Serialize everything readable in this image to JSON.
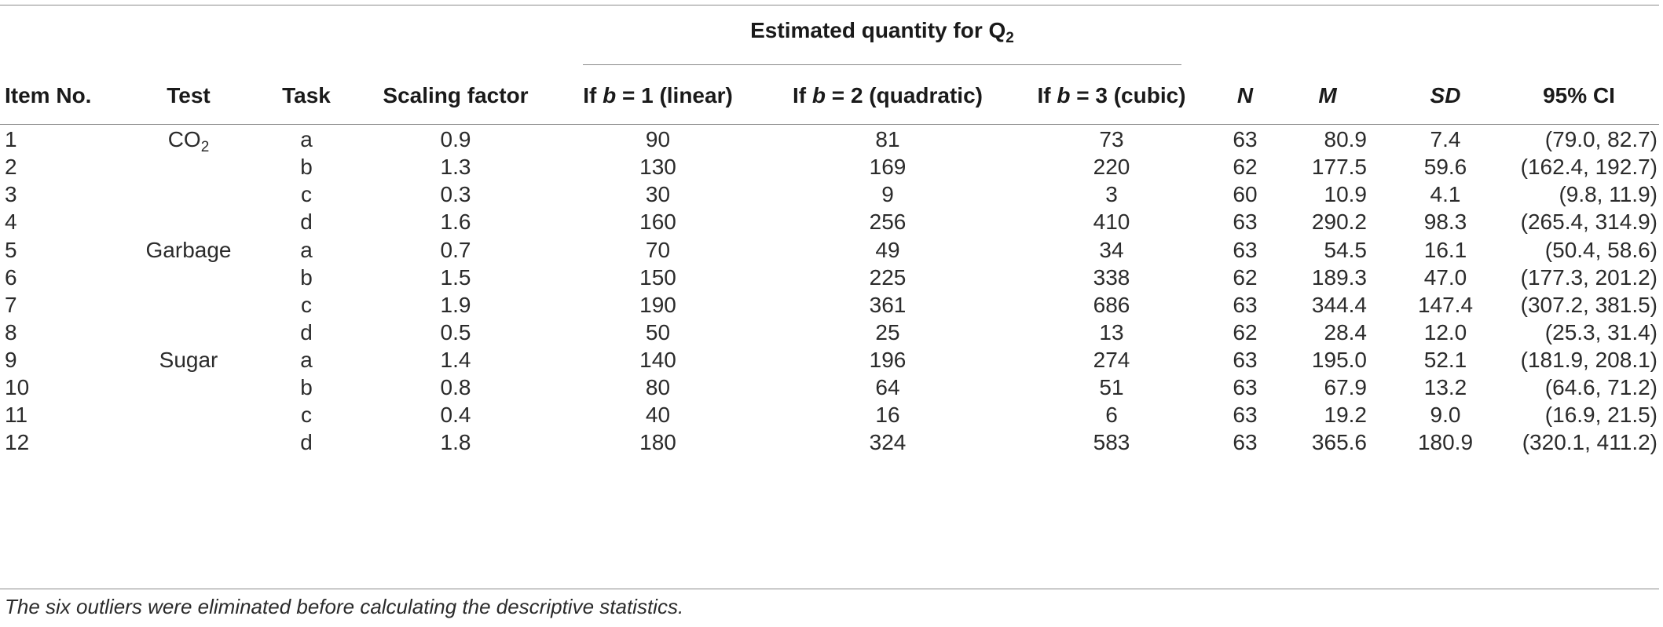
{
  "table": {
    "span_header": {
      "text": "Estimated quantity for Q",
      "sub": "2"
    },
    "headers": {
      "item": "Item No.",
      "test": "Test",
      "task": "Task",
      "scale": "Scaling factor",
      "lin_pre": "If ",
      "lin_b": "b",
      "lin_post": " = 1 (linear)",
      "quad_pre": "If ",
      "quad_b": "b",
      "quad_post": " = 2 (quadratic)",
      "cub_pre": "If ",
      "cub_b": "b",
      "cub_post": " = 3 (cubic)",
      "n": "N",
      "m": "M",
      "sd": "SD",
      "ci": "95% CI"
    },
    "rows": [
      {
        "item": "1",
        "test": "CO",
        "test_sub": "2",
        "task": "a",
        "scale": "0.9",
        "lin": "90",
        "quad": "81",
        "cub": "73",
        "n": "63",
        "m": "80.9",
        "sd": "7.4",
        "ci": "(79.0, 82.7)"
      },
      {
        "item": "2",
        "test": "",
        "test_sub": "",
        "task": "b",
        "scale": "1.3",
        "lin": "130",
        "quad": "169",
        "cub": "220",
        "n": "62",
        "m": "177.5",
        "sd": "59.6",
        "ci": "(162.4, 192.7)"
      },
      {
        "item": "3",
        "test": "",
        "test_sub": "",
        "task": "c",
        "scale": "0.3",
        "lin": "30",
        "quad": "9",
        "cub": "3",
        "n": "60",
        "m": "10.9",
        "sd": "4.1",
        "ci": "(9.8, 11.9)"
      },
      {
        "item": "4",
        "test": "",
        "test_sub": "",
        "task": "d",
        "scale": "1.6",
        "lin": "160",
        "quad": "256",
        "cub": "410",
        "n": "63",
        "m": "290.2",
        "sd": "98.3",
        "ci": "(265.4, 314.9)"
      },
      {
        "item": "5",
        "test": "Garbage",
        "test_sub": "",
        "task": "a",
        "scale": "0.7",
        "lin": "70",
        "quad": "49",
        "cub": "34",
        "n": "63",
        "m": "54.5",
        "sd": "16.1",
        "ci": "(50.4, 58.6)"
      },
      {
        "item": "6",
        "test": "",
        "test_sub": "",
        "task": "b",
        "scale": "1.5",
        "lin": "150",
        "quad": "225",
        "cub": "338",
        "n": "62",
        "m": "189.3",
        "sd": "47.0",
        "ci": "(177.3, 201.2)"
      },
      {
        "item": "7",
        "test": "",
        "test_sub": "",
        "task": "c",
        "scale": "1.9",
        "lin": "190",
        "quad": "361",
        "cub": "686",
        "n": "63",
        "m": "344.4",
        "sd": "147.4",
        "ci": "(307.2, 381.5)"
      },
      {
        "item": "8",
        "test": "",
        "test_sub": "",
        "task": "d",
        "scale": "0.5",
        "lin": "50",
        "quad": "25",
        "cub": "13",
        "n": "62",
        "m": "28.4",
        "sd": "12.0",
        "ci": "(25.3, 31.4)"
      },
      {
        "item": "9",
        "test": "Sugar",
        "test_sub": "",
        "task": "a",
        "scale": "1.4",
        "lin": "140",
        "quad": "196",
        "cub": "274",
        "n": "63",
        "m": "195.0",
        "sd": "52.1",
        "ci": "(181.9, 208.1)"
      },
      {
        "item": "10",
        "test": "",
        "test_sub": "",
        "task": "b",
        "scale": "0.8",
        "lin": "80",
        "quad": "64",
        "cub": "51",
        "n": "63",
        "m": "67.9",
        "sd": "13.2",
        "ci": "(64.6, 71.2)"
      },
      {
        "item": "11",
        "test": "",
        "test_sub": "",
        "task": "c",
        "scale": "0.4",
        "lin": "40",
        "quad": "16",
        "cub": "6",
        "n": "63",
        "m": "19.2",
        "sd": "9.0",
        "ci": "(16.9, 21.5)"
      },
      {
        "item": "12",
        "test": "",
        "test_sub": "",
        "task": "d",
        "scale": "1.8",
        "lin": "180",
        "quad": "324",
        "cub": "583",
        "n": "63",
        "m": "365.6",
        "sd": "180.9",
        "ci": "(320.1, 411.2)"
      }
    ],
    "footnote": "The six outliers were eliminated before calculating the descriptive statistics."
  }
}
